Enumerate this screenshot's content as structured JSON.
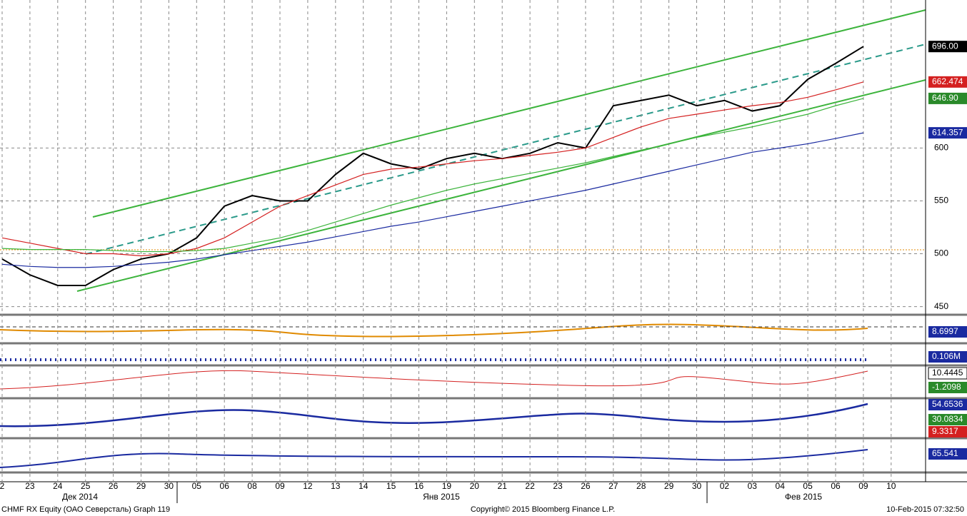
{
  "chart_data": {
    "type": "line",
    "categories": [
      "2",
      "23",
      "24",
      "25",
      "26",
      "29",
      "30",
      "05",
      "06",
      "08",
      "09",
      "12",
      "13",
      "14",
      "15",
      "16",
      "19",
      "20",
      "21",
      "22",
      "23",
      "26",
      "27",
      "28",
      "29",
      "30",
      "02",
      "03",
      "04",
      "05",
      "06",
      "09",
      "10"
    ],
    "months": [
      "Дек 2014",
      "Янв 2015",
      "Фев 2015"
    ],
    "series": [
      {
        "color": "#000000",
        "values": [
          495,
          480,
          470,
          470,
          485,
          495,
          500,
          515,
          545,
          555,
          550,
          550,
          575,
          595,
          585,
          580,
          590,
          595,
          590,
          595,
          605,
          600,
          640,
          645,
          650,
          640,
          645,
          635,
          640,
          665,
          680,
          696,
          null
        ]
      },
      {
        "color": "#d42020",
        "values": [
          515,
          510,
          505,
          500,
          500,
          498,
          500,
          505,
          515,
          530,
          545,
          555,
          565,
          575,
          580,
          582,
          585,
          588,
          590,
          593,
          596,
          600,
          610,
          620,
          628,
          632,
          636,
          640,
          643,
          648,
          655,
          662.474,
          null
        ]
      },
      {
        "color": "#3cb43c",
        "values": [
          505,
          504,
          504,
          504,
          503,
          502,
          502,
          503,
          505,
          510,
          515,
          522,
          530,
          538,
          546,
          553,
          560,
          566,
          571,
          576,
          581,
          586,
          592,
          598,
          604,
          610,
          615,
          620,
          626,
          632,
          640,
          646.9,
          null
        ]
      },
      {
        "color": "#1a2aa0",
        "values": [
          490,
          488,
          487,
          487,
          488,
          490,
          492,
          495,
          499,
          503,
          507,
          511,
          516,
          521,
          526,
          530,
          535,
          540,
          545,
          550,
          555,
          560,
          566,
          572,
          578,
          584,
          590,
          596,
          600,
          604,
          609,
          614.357,
          null
        ]
      }
    ],
    "ylim": [
      445,
      740
    ],
    "yticks": [
      450,
      500,
      550,
      600
    ],
    "grid": true,
    "price_labels": [
      {
        "value": 696,
        "label": "696.00",
        "color": "#000000"
      },
      {
        "value": 662.474,
        "label": "662.474",
        "color": "#d42020"
      },
      {
        "value": 646.9,
        "label": "646.90",
        "color": "#2a8a2a"
      },
      {
        "value": 614.357,
        "label": "614.357",
        "color": "#1a2aa0"
      }
    ],
    "indicator_labels": [
      {
        "label": "8.6997",
        "color": "#1a2aa0"
      },
      {
        "label": "0.106M",
        "color": "#1a2aa0"
      },
      {
        "label": "10.4445",
        "color": "#ffffff"
      },
      {
        "label": "-1.2098",
        "color": "#2a8a2a"
      },
      {
        "label": "54.6536",
        "color": "#1a2aa0"
      },
      {
        "label": "30.0834",
        "color": "#2a8a2a"
      },
      {
        "label": "9.3317",
        "color": "#d42020"
      },
      {
        "label": "65.541",
        "color": "#1a2aa0"
      }
    ],
    "footer": {
      "left": "CHMF RX Equity (ОАО Северсталь) Graph 119",
      "center": "Copyright© 2015 Bloomberg Finance L.P.",
      "right": "10-Feb-2015 07:32:50"
    }
  }
}
